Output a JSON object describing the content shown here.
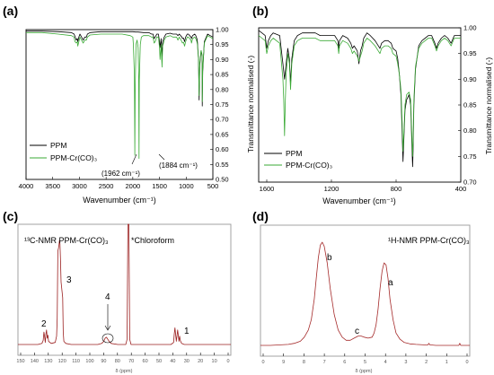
{
  "chart_data": [
    {
      "panel_label": "(a)",
      "type": "line",
      "xlabel": "Wavenumber (cm⁻¹)",
      "ylabel": "Transmittance normalised (-)",
      "xlim": [
        4000,
        500
      ],
      "ylim": [
        0.5,
        1.0
      ],
      "x_ticks": [
        "4000",
        "3500",
        "3000",
        "2500",
        "2000",
        "1500",
        "1000",
        "500"
      ],
      "y_ticks": [
        "0.50",
        "0.55",
        "0.60",
        "0.65",
        "0.70",
        "0.75",
        "0.80",
        "0.85",
        "0.90",
        "0.95",
        "1.00"
      ],
      "legend": {
        "position": "bottom-left",
        "entries": [
          "PPM",
          "PPM-Cr(CO)₃"
        ]
      },
      "annotations": [
        {
          "text": "(1962 cm⁻¹)",
          "x": 1962,
          "y": 0.575
        },
        {
          "text": "(1884 cm⁻¹)",
          "x": 1884,
          "y": 0.575
        }
      ],
      "series": [
        {
          "name": "PPM",
          "color": "#000000",
          "x": [
            4000,
            3700,
            3400,
            3150,
            3100,
            3080,
            3060,
            3040,
            3030,
            3010,
            2990,
            2960,
            2930,
            2900,
            2870,
            2850,
            2800,
            2600,
            2400,
            2200,
            2000,
            1950,
            1900,
            1800,
            1700,
            1650,
            1620,
            1600,
            1580,
            1550,
            1520,
            1500,
            1490,
            1470,
            1453,
            1440,
            1410,
            1380,
            1300,
            1250,
            1180,
            1155,
            1130,
            1080,
            1070,
            1050,
            1030,
            1010,
            980,
            960,
            910,
            900,
            880,
            840,
            820,
            800,
            790,
            770,
            757,
            745,
            720,
            700,
            698,
            690,
            660,
            600,
            550,
            500
          ],
          "y": [
            0.995,
            0.995,
            0.993,
            0.99,
            0.985,
            0.975,
            0.965,
            0.97,
            0.96,
            0.975,
            0.985,
            0.975,
            0.965,
            0.975,
            0.975,
            0.985,
            0.99,
            0.993,
            0.993,
            0.993,
            0.993,
            0.992,
            0.992,
            0.99,
            0.99,
            0.985,
            0.985,
            0.97,
            0.975,
            0.985,
            0.985,
            0.96,
            0.94,
            0.97,
            0.91,
            0.96,
            0.975,
            0.985,
            0.988,
            0.985,
            0.985,
            0.98,
            0.985,
            0.975,
            0.97,
            0.972,
            0.96,
            0.975,
            0.985,
            0.985,
            0.975,
            0.97,
            0.98,
            0.985,
            0.98,
            0.97,
            0.96,
            0.9,
            0.765,
            0.88,
            0.93,
            0.91,
            0.745,
            0.86,
            0.96,
            0.985,
            0.98,
            0.975
          ]
        },
        {
          "name": "PPM-Cr(CO)₃",
          "color": "#3aaa35",
          "x": [
            4000,
            3700,
            3400,
            3150,
            3100,
            3085,
            3060,
            3040,
            3030,
            3010,
            2990,
            2960,
            2930,
            2900,
            2870,
            2850,
            2800,
            2600,
            2400,
            2200,
            2050,
            2000,
            1990,
            1970,
            1962,
            1955,
            1940,
            1920,
            1900,
            1890,
            1884,
            1878,
            1860,
            1840,
            1800,
            1700,
            1650,
            1620,
            1600,
            1580,
            1550,
            1520,
            1500,
            1490,
            1470,
            1453,
            1440,
            1410,
            1380,
            1300,
            1250,
            1180,
            1155,
            1130,
            1080,
            1070,
            1050,
            1030,
            1010,
            980,
            960,
            910,
            900,
            880,
            840,
            820,
            800,
            790,
            770,
            757,
            745,
            720,
            700,
            698,
            690,
            660,
            600,
            550,
            500
          ],
          "y": [
            0.99,
            0.99,
            0.985,
            0.98,
            0.975,
            0.96,
            0.955,
            0.96,
            0.945,
            0.96,
            0.975,
            0.965,
            0.955,
            0.965,
            0.965,
            0.975,
            0.982,
            0.985,
            0.985,
            0.985,
            0.98,
            0.975,
            0.95,
            0.85,
            0.58,
            0.8,
            0.95,
            0.965,
            0.94,
            0.85,
            0.57,
            0.83,
            0.95,
            0.975,
            0.98,
            0.98,
            0.975,
            0.975,
            0.955,
            0.96,
            0.975,
            0.975,
            0.94,
            0.9,
            0.95,
            0.875,
            0.945,
            0.965,
            0.975,
            0.98,
            0.975,
            0.975,
            0.965,
            0.975,
            0.96,
            0.955,
            0.958,
            0.945,
            0.96,
            0.975,
            0.975,
            0.965,
            0.955,
            0.97,
            0.975,
            0.97,
            0.96,
            0.95,
            0.9,
            0.78,
            0.89,
            0.93,
            0.915,
            0.76,
            0.87,
            0.955,
            0.98,
            0.975,
            0.97
          ]
        }
      ]
    },
    {
      "panel_label": "(b)",
      "type": "line",
      "xlabel": "Wavenumber (cm⁻¹)",
      "ylabel": "Transmittance normalised (-)",
      "xlim": [
        1650,
        400
      ],
      "ylim": [
        0.7,
        1.0
      ],
      "x_ticks": [
        "1600",
        "1200",
        "800",
        "400"
      ],
      "y_ticks": [
        "0.70",
        "0.75",
        "0.80",
        "0.85",
        "0.90",
        "0.95",
        "1.00"
      ],
      "legend": {
        "position": "bottom-left",
        "entries": [
          "PPM",
          "PPM-Cr(CO)₃"
        ]
      },
      "series": [
        {
          "name": "PPM",
          "color": "#000000",
          "x": [
            1650,
            1630,
            1610,
            1600,
            1590,
            1575,
            1560,
            1520,
            1500,
            1490,
            1480,
            1470,
            1460,
            1453,
            1445,
            1430,
            1410,
            1380,
            1340,
            1300,
            1270,
            1250,
            1220,
            1200,
            1180,
            1160,
            1155,
            1150,
            1130,
            1100,
            1080,
            1070,
            1060,
            1050,
            1040,
            1030,
            1020,
            1010,
            1000,
            980,
            960,
            930,
            910,
            900,
            890,
            870,
            850,
            830,
            820,
            800,
            790,
            780,
            770,
            765,
            757,
            750,
            745,
            735,
            720,
            710,
            700,
            698,
            695,
            690,
            680,
            660,
            640,
            620,
            600,
            580,
            560,
            550,
            540,
            520,
            500,
            480,
            460,
            440,
            420,
            400
          ],
          "y": [
            0.995,
            0.99,
            0.985,
            0.96,
            0.975,
            0.985,
            0.99,
            0.985,
            0.93,
            0.9,
            0.93,
            0.96,
            0.94,
            0.89,
            0.94,
            0.975,
            0.985,
            0.99,
            0.99,
            0.99,
            0.985,
            0.985,
            0.985,
            0.985,
            0.985,
            0.975,
            0.96,
            0.975,
            0.985,
            0.98,
            0.97,
            0.96,
            0.965,
            0.96,
            0.955,
            0.93,
            0.955,
            0.965,
            0.98,
            0.99,
            0.985,
            0.975,
            0.965,
            0.96,
            0.97,
            0.975,
            0.975,
            0.97,
            0.96,
            0.955,
            0.94,
            0.91,
            0.87,
            0.82,
            0.74,
            0.8,
            0.84,
            0.86,
            0.87,
            0.85,
            0.75,
            0.73,
            0.76,
            0.85,
            0.92,
            0.965,
            0.975,
            0.98,
            0.985,
            0.985,
            0.97,
            0.96,
            0.97,
            0.98,
            0.985,
            0.98,
            0.97,
            0.985,
            0.985,
            0.985
          ]
        },
        {
          "name": "PPM-Cr(CO)₃",
          "color": "#3aaa35",
          "x": [
            1650,
            1630,
            1610,
            1600,
            1590,
            1575,
            1560,
            1520,
            1500,
            1495,
            1490,
            1485,
            1480,
            1470,
            1460,
            1453,
            1445,
            1430,
            1410,
            1380,
            1340,
            1300,
            1270,
            1250,
            1220,
            1200,
            1180,
            1160,
            1155,
            1150,
            1130,
            1100,
            1080,
            1070,
            1060,
            1050,
            1040,
            1030,
            1020,
            1010,
            1000,
            980,
            960,
            930,
            910,
            900,
            890,
            870,
            850,
            830,
            820,
            800,
            790,
            780,
            770,
            765,
            757,
            750,
            745,
            735,
            720,
            710,
            700,
            698,
            695,
            690,
            680,
            660,
            640,
            620,
            600,
            580,
            560,
            550,
            540,
            520,
            500,
            480,
            460,
            440,
            420,
            400
          ],
          "y": [
            0.985,
            0.98,
            0.975,
            0.95,
            0.965,
            0.975,
            0.98,
            0.97,
            0.9,
            0.86,
            0.79,
            0.86,
            0.91,
            0.95,
            0.93,
            0.88,
            0.93,
            0.965,
            0.975,
            0.98,
            0.98,
            0.98,
            0.975,
            0.975,
            0.975,
            0.975,
            0.975,
            0.965,
            0.95,
            0.965,
            0.975,
            0.97,
            0.96,
            0.95,
            0.955,
            0.95,
            0.945,
            0.935,
            0.945,
            0.955,
            0.97,
            0.98,
            0.975,
            0.965,
            0.955,
            0.95,
            0.96,
            0.965,
            0.965,
            0.96,
            0.95,
            0.945,
            0.93,
            0.91,
            0.88,
            0.84,
            0.76,
            0.81,
            0.85,
            0.87,
            0.875,
            0.86,
            0.77,
            0.75,
            0.78,
            0.86,
            0.925,
            0.96,
            0.97,
            0.975,
            0.98,
            0.98,
            0.965,
            0.955,
            0.965,
            0.975,
            0.98,
            0.975,
            0.965,
            0.98,
            0.98,
            0.98
          ]
        }
      ]
    },
    {
      "panel_label": "(c)",
      "type": "line",
      "xlabel": "δ (ppm)",
      "xlim": [
        160,
        0
      ],
      "x_ticks": [
        "150",
        "140",
        "130",
        "120",
        "110",
        "100",
        "90",
        "80",
        "70",
        "60",
        "50",
        "40",
        "30",
        "20",
        "10",
        "0"
      ],
      "title": "¹³C-NMR PPM-Cr(CO)₃",
      "annotations": [
        {
          "text": "*Chloroform",
          "x": 77
        },
        {
          "text": "1",
          "x": 40
        },
        {
          "text": "2",
          "x": 139
        },
        {
          "text": "3",
          "x": 128.5
        },
        {
          "text": "4",
          "x": 93
        }
      ],
      "series": [
        {
          "name": "",
          "color": "#9b2020",
          "x": [
            160,
            150,
            145,
            142,
            141,
            140.5,
            140,
            139.5,
            139,
            138.5,
            138,
            137.5,
            137,
            135,
            132,
            131,
            130.5,
            130,
            129.6,
            129.2,
            128.8,
            128.4,
            128,
            127.6,
            127.2,
            126.8,
            126.4,
            126,
            125.5,
            124,
            120,
            110,
            100,
            97,
            95.5,
            94.5,
            93.5,
            92.5,
            91.5,
            90,
            85,
            79,
            78,
            77.4,
            77,
            76.6,
            76,
            75,
            70,
            60,
            50,
            45,
            43,
            42.5,
            42,
            41.5,
            41,
            40.5,
            40,
            39.5,
            39,
            38.5,
            38,
            37,
            35,
            30,
            20,
            10,
            0
          ],
          "y": [
            0.0,
            0.0,
            0.0,
            0.01,
            0.04,
            0.12,
            0.08,
            0.02,
            0.1,
            0.14,
            0.06,
            0.09,
            0.03,
            0.01,
            0.02,
            0.08,
            0.25,
            0.9,
            0.92,
            0.95,
            1.0,
            0.96,
            0.8,
            0.6,
            0.55,
            0.5,
            0.45,
            0.12,
            0.03,
            0.01,
            0.0,
            0.0,
            0.0,
            0.01,
            0.03,
            0.06,
            0.07,
            0.05,
            0.03,
            0.01,
            0.0,
            0.0,
            0.05,
            1.2,
            1.2,
            1.2,
            0.05,
            0.0,
            0.0,
            0.0,
            0.0,
            0.0,
            0.02,
            0.1,
            0.16,
            0.1,
            0.03,
            0.08,
            0.14,
            0.09,
            0.03,
            0.08,
            0.04,
            0.01,
            0.0,
            0.0,
            0.0,
            0.0,
            0.0
          ]
        }
      ]
    },
    {
      "panel_label": "(d)",
      "type": "line",
      "xlabel": "δ (ppm)",
      "xlim": [
        10,
        -0.5
      ],
      "x_ticks": [
        "0",
        "9",
        "8",
        "7",
        "6",
        "5",
        "4",
        "3",
        "2",
        "1",
        "0"
      ],
      "title": "¹H-NMR PPM-Cr(CO)₃",
      "annotations": [
        {
          "text": "a",
          "x": 3.5
        },
        {
          "text": "b",
          "x": 6.9
        },
        {
          "text": "c",
          "x": 5.2
        }
      ],
      "series": [
        {
          "name": "",
          "color": "#a52a2a",
          "x": [
            10,
            9.5,
            9,
            8.6,
            8.3,
            8,
            7.8,
            7.6,
            7.45,
            7.3,
            7.2,
            7.1,
            7.0,
            6.9,
            6.8,
            6.65,
            6.5,
            6.3,
            6.1,
            5.9,
            5.7,
            5.5,
            5.3,
            5.1,
            4.95,
            4.8,
            4.6,
            4.4,
            4.3,
            4.2,
            4.1,
            4.0,
            3.9,
            3.8,
            3.7,
            3.6,
            3.5,
            3.35,
            3.2,
            3.0,
            2.8,
            2.5,
            2.2,
            1.8,
            1.6,
            1.55,
            1.5,
            1.2,
            0.5,
            0.05,
            0,
            -0.05,
            -0.5
          ],
          "y": [
            0.0,
            0.0,
            0.005,
            0.01,
            0.02,
            0.04,
            0.08,
            0.15,
            0.25,
            0.45,
            0.65,
            0.85,
            0.97,
            1.0,
            0.96,
            0.8,
            0.55,
            0.3,
            0.15,
            0.08,
            0.05,
            0.05,
            0.07,
            0.09,
            0.09,
            0.08,
            0.07,
            0.08,
            0.12,
            0.2,
            0.35,
            0.55,
            0.72,
            0.8,
            0.78,
            0.65,
            0.45,
            0.25,
            0.12,
            0.06,
            0.03,
            0.015,
            0.01,
            0.005,
            0.005,
            0.02,
            0.005,
            0.0,
            0.0,
            0.0,
            0.02,
            0.0,
            0.0
          ]
        }
      ]
    }
  ]
}
